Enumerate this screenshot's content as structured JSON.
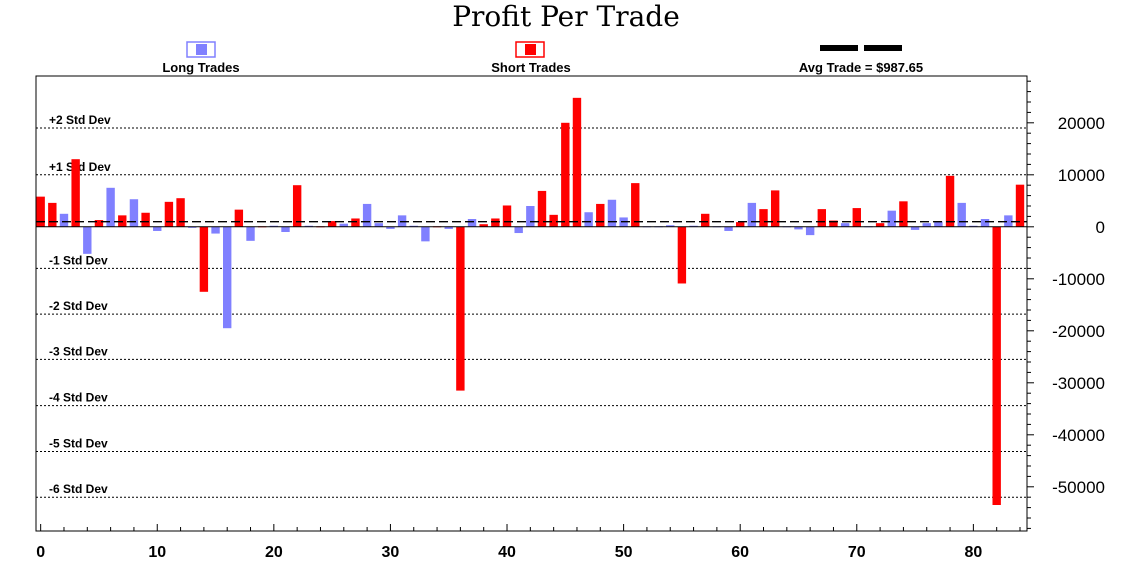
{
  "chart_data": {
    "type": "bar",
    "title": "Profit Per Trade",
    "legend": {
      "long_label": "Long Trades",
      "short_label": "Short Trades",
      "avg_label": "Avg Trade = $987.65"
    },
    "colors": {
      "long": "#8080ff",
      "short": "#ff0000",
      "avg": "#000000",
      "grid": "#000000"
    },
    "avg_trade": 987.65,
    "std_levels": [
      {
        "label": "+2 Std Dev",
        "value": 19000
      },
      {
        "label": "+1 Std Dev",
        "value": 10000
      },
      {
        "label": "-1 Std Dev",
        "value": -8000
      },
      {
        "label": "-2 Std Dev",
        "value": -16800
      },
      {
        "label": "-3 Std Dev",
        "value": -25500
      },
      {
        "label": "-4 Std Dev",
        "value": -34400
      },
      {
        "label": "-5 Std Dev",
        "value": -43200
      },
      {
        "label": "-6 Std Dev",
        "value": -52000
      }
    ],
    "xlim": [
      -0.4,
      84.6
    ],
    "ylim": [
      -58500,
      29000
    ],
    "yticks": [
      {
        "value": 20000,
        "label": "20000"
      },
      {
        "value": 10000,
        "label": "10000"
      },
      {
        "value": 0,
        "label": "0"
      },
      {
        "value": -10000,
        "label": "-10000"
      },
      {
        "value": -20000,
        "label": "-20000"
      },
      {
        "value": -30000,
        "label": "-30000"
      },
      {
        "value": -40000,
        "label": "-40000"
      },
      {
        "value": -50000,
        "label": "-50000"
      }
    ],
    "xticks": [
      {
        "value": 0,
        "label": "0"
      },
      {
        "value": 10,
        "label": "10"
      },
      {
        "value": 20,
        "label": "20"
      },
      {
        "value": 30,
        "label": "30"
      },
      {
        "value": 40,
        "label": "40"
      },
      {
        "value": 50,
        "label": "50"
      },
      {
        "value": 60,
        "label": "60"
      },
      {
        "value": 70,
        "label": "70"
      },
      {
        "value": 80,
        "label": "80"
      }
    ],
    "trades": [
      {
        "x": 0,
        "v": 5800,
        "s": "short"
      },
      {
        "x": 1,
        "v": 4600,
        "s": "short"
      },
      {
        "x": 2,
        "v": 2500,
        "s": "long"
      },
      {
        "x": 3,
        "v": 13000,
        "s": "short"
      },
      {
        "x": 4,
        "v": -5200,
        "s": "long"
      },
      {
        "x": 5,
        "v": 1300,
        "s": "short"
      },
      {
        "x": 6,
        "v": 7500,
        "s": "long"
      },
      {
        "x": 7,
        "v": 2200,
        "s": "short"
      },
      {
        "x": 8,
        "v": 5300,
        "s": "long"
      },
      {
        "x": 9,
        "v": 2700,
        "s": "short"
      },
      {
        "x": 10,
        "v": -800,
        "s": "long"
      },
      {
        "x": 11,
        "v": 4800,
        "s": "short"
      },
      {
        "x": 12,
        "v": 5500,
        "s": "short"
      },
      {
        "x": 13,
        "v": -200,
        "s": "long"
      },
      {
        "x": 14,
        "v": -12500,
        "s": "short"
      },
      {
        "x": 15,
        "v": -1300,
        "s": "long"
      },
      {
        "x": 16,
        "v": -19500,
        "s": "long"
      },
      {
        "x": 17,
        "v": 3300,
        "s": "short"
      },
      {
        "x": 18,
        "v": -2700,
        "s": "long"
      },
      {
        "x": 19,
        "v": 100,
        "s": "short"
      },
      {
        "x": 20,
        "v": 200,
        "s": "long"
      },
      {
        "x": 21,
        "v": -1000,
        "s": "long"
      },
      {
        "x": 22,
        "v": 8000,
        "s": "short"
      },
      {
        "x": 23,
        "v": 200,
        "s": "long"
      },
      {
        "x": 24,
        "v": 100,
        "s": "short"
      },
      {
        "x": 25,
        "v": 1100,
        "s": "short"
      },
      {
        "x": 26,
        "v": 600,
        "s": "long"
      },
      {
        "x": 27,
        "v": 1600,
        "s": "short"
      },
      {
        "x": 28,
        "v": 4400,
        "s": "long"
      },
      {
        "x": 29,
        "v": 700,
        "s": "long"
      },
      {
        "x": 30,
        "v": -400,
        "s": "long"
      },
      {
        "x": 31,
        "v": 2200,
        "s": "long"
      },
      {
        "x": 32,
        "v": 200,
        "s": "long"
      },
      {
        "x": 33,
        "v": -2800,
        "s": "long"
      },
      {
        "x": 34,
        "v": 100,
        "s": "short"
      },
      {
        "x": 35,
        "v": -400,
        "s": "long"
      },
      {
        "x": 36,
        "v": -31500,
        "s": "short"
      },
      {
        "x": 37,
        "v": 1500,
        "s": "long"
      },
      {
        "x": 38,
        "v": 500,
        "s": "short"
      },
      {
        "x": 39,
        "v": 1600,
        "s": "short"
      },
      {
        "x": 40,
        "v": 4100,
        "s": "short"
      },
      {
        "x": 41,
        "v": -1200,
        "s": "long"
      },
      {
        "x": 42,
        "v": 4000,
        "s": "long"
      },
      {
        "x": 43,
        "v": 6900,
        "s": "short"
      },
      {
        "x": 44,
        "v": 2300,
        "s": "short"
      },
      {
        "x": 45,
        "v": 20000,
        "s": "short"
      },
      {
        "x": 46,
        "v": 24800,
        "s": "short"
      },
      {
        "x": 47,
        "v": 2800,
        "s": "long"
      },
      {
        "x": 48,
        "v": 4400,
        "s": "short"
      },
      {
        "x": 49,
        "v": 5200,
        "s": "long"
      },
      {
        "x": 50,
        "v": 1800,
        "s": "long"
      },
      {
        "x": 51,
        "v": 8400,
        "s": "short"
      },
      {
        "x": 52,
        "v": 100,
        "s": "long"
      },
      {
        "x": 53,
        "v": 100,
        "s": "long"
      },
      {
        "x": 54,
        "v": 300,
        "s": "long"
      },
      {
        "x": 55,
        "v": -10900,
        "s": "short"
      },
      {
        "x": 56,
        "v": 200,
        "s": "long"
      },
      {
        "x": 57,
        "v": 2500,
        "s": "short"
      },
      {
        "x": 58,
        "v": 100,
        "s": "long"
      },
      {
        "x": 59,
        "v": -800,
        "s": "long"
      },
      {
        "x": 60,
        "v": 900,
        "s": "short"
      },
      {
        "x": 61,
        "v": 4600,
        "s": "long"
      },
      {
        "x": 62,
        "v": 3400,
        "s": "short"
      },
      {
        "x": 63,
        "v": 7000,
        "s": "short"
      },
      {
        "x": 64,
        "v": 100,
        "s": "long"
      },
      {
        "x": 65,
        "v": -500,
        "s": "long"
      },
      {
        "x": 66,
        "v": -1600,
        "s": "long"
      },
      {
        "x": 67,
        "v": 3400,
        "s": "short"
      },
      {
        "x": 68,
        "v": 1200,
        "s": "short"
      },
      {
        "x": 69,
        "v": 700,
        "s": "long"
      },
      {
        "x": 70,
        "v": 3600,
        "s": "short"
      },
      {
        "x": 71,
        "v": 100,
        "s": "long"
      },
      {
        "x": 72,
        "v": 700,
        "s": "short"
      },
      {
        "x": 73,
        "v": 3100,
        "s": "long"
      },
      {
        "x": 74,
        "v": 4900,
        "s": "short"
      },
      {
        "x": 75,
        "v": -600,
        "s": "long"
      },
      {
        "x": 76,
        "v": 700,
        "s": "long"
      },
      {
        "x": 77,
        "v": 1000,
        "s": "long"
      },
      {
        "x": 78,
        "v": 9800,
        "s": "short"
      },
      {
        "x": 79,
        "v": 4600,
        "s": "long"
      },
      {
        "x": 80,
        "v": 200,
        "s": "long"
      },
      {
        "x": 81,
        "v": 1500,
        "s": "long"
      },
      {
        "x": 82,
        "v": -53500,
        "s": "short"
      },
      {
        "x": 83,
        "v": 2200,
        "s": "long"
      },
      {
        "x": 84,
        "v": 8100,
        "s": "short"
      }
    ]
  }
}
